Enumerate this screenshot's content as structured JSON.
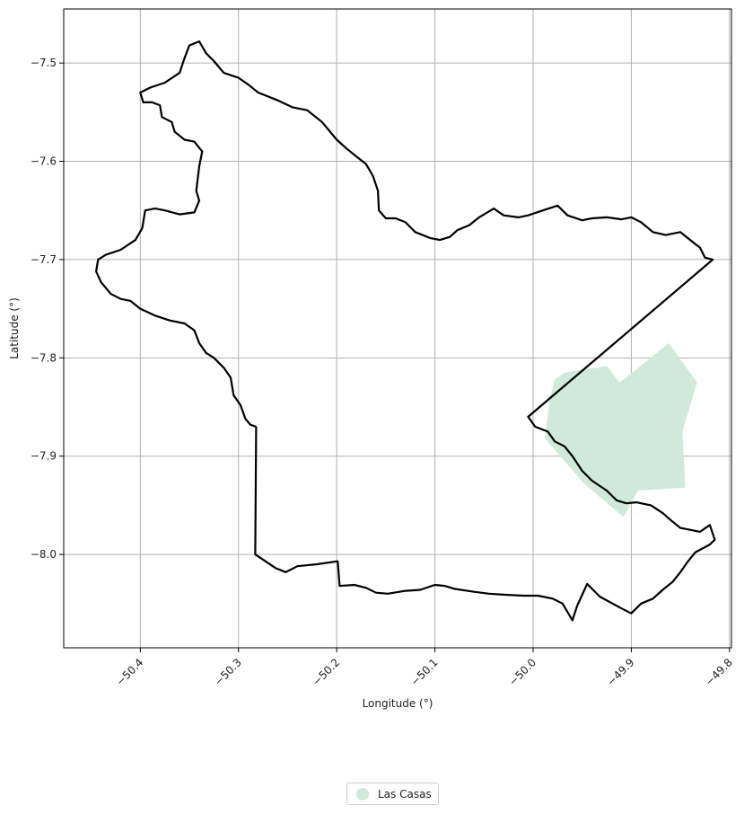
{
  "chart_data": {
    "type": "map",
    "xlabel": "Longitude (°)",
    "ylabel": "Latitude (°)",
    "xlim": [
      -50.478,
      -49.798
    ],
    "ylim": [
      -8.095,
      -7.445
    ],
    "x_ticks": [
      -50.4,
      -50.3,
      -50.2,
      -50.1,
      -50.0,
      -49.9,
      -49.8
    ],
    "x_tick_labels": [
      "−50.4",
      "−50.3",
      "−50.2",
      "−50.1",
      "−50.0",
      "−49.9",
      "−49.8"
    ],
    "y_ticks": [
      -7.5,
      -7.6,
      -7.7,
      -7.8,
      -7.9,
      -8.0
    ],
    "y_tick_labels": [
      "−7.5",
      "−7.6",
      "−7.7",
      "−7.8",
      "−7.9",
      "−8.0"
    ],
    "grid": true,
    "legend_position": "bottom-center",
    "colors": {
      "boundary": "#000000",
      "fill": "#cfeadc",
      "grid": "#b0b0b0"
    },
    "boundary": [
      [
        -50.282,
        -7.87
      ],
      [
        -50.288,
        -7.868
      ],
      [
        -50.293,
        -7.862
      ],
      [
        -50.298,
        -7.848
      ],
      [
        -50.305,
        -7.838
      ],
      [
        -50.308,
        -7.82
      ],
      [
        -50.315,
        -7.81
      ],
      [
        -50.325,
        -7.8
      ],
      [
        -50.333,
        -7.795
      ],
      [
        -50.34,
        -7.785
      ],
      [
        -50.345,
        -7.772
      ],
      [
        -50.355,
        -7.765
      ],
      [
        -50.37,
        -7.762
      ],
      [
        -50.385,
        -7.757
      ],
      [
        -50.4,
        -7.75
      ],
      [
        -50.41,
        -7.742
      ],
      [
        -50.42,
        -7.74
      ],
      [
        -50.43,
        -7.735
      ],
      [
        -50.44,
        -7.723
      ],
      [
        -50.445,
        -7.712
      ],
      [
        -50.443,
        -7.7
      ],
      [
        -50.435,
        -7.695
      ],
      [
        -50.42,
        -7.69
      ],
      [
        -50.405,
        -7.68
      ],
      [
        -50.398,
        -7.668
      ],
      [
        -50.395,
        -7.65
      ],
      [
        -50.385,
        -7.648
      ],
      [
        -50.375,
        -7.65
      ],
      [
        -50.36,
        -7.654
      ],
      [
        -50.345,
        -7.652
      ],
      [
        -50.34,
        -7.64
      ],
      [
        -50.343,
        -7.63
      ],
      [
        -50.34,
        -7.605
      ],
      [
        -50.337,
        -7.59
      ],
      [
        -50.345,
        -7.58
      ],
      [
        -50.355,
        -7.578
      ],
      [
        -50.365,
        -7.57
      ],
      [
        -50.368,
        -7.56
      ],
      [
        -50.378,
        -7.555
      ],
      [
        -50.38,
        -7.543
      ],
      [
        -50.388,
        -7.54
      ],
      [
        -50.397,
        -7.54
      ],
      [
        -50.4,
        -7.53
      ],
      [
        -50.39,
        -7.525
      ],
      [
        -50.375,
        -7.52
      ],
      [
        -50.36,
        -7.51
      ],
      [
        -50.355,
        -7.495
      ],
      [
        -50.35,
        -7.482
      ],
      [
        -50.34,
        -7.478
      ],
      [
        -50.333,
        -7.49
      ],
      [
        -50.325,
        -7.498
      ],
      [
        -50.315,
        -7.51
      ],
      [
        -50.3,
        -7.515
      ],
      [
        -50.29,
        -7.522
      ],
      [
        -50.28,
        -7.53
      ],
      [
        -50.26,
        -7.538
      ],
      [
        -50.245,
        -7.545
      ],
      [
        -50.23,
        -7.548
      ],
      [
        -50.215,
        -7.56
      ],
      [
        -50.2,
        -7.578
      ],
      [
        -50.19,
        -7.587
      ],
      [
        -50.18,
        -7.595
      ],
      [
        -50.17,
        -7.603
      ],
      [
        -50.163,
        -7.615
      ],
      [
        -50.158,
        -7.63
      ],
      [
        -50.157,
        -7.65
      ],
      [
        -50.15,
        -7.658
      ],
      [
        -50.14,
        -7.658
      ],
      [
        -50.13,
        -7.662
      ],
      [
        -50.12,
        -7.672
      ],
      [
        -50.105,
        -7.678
      ],
      [
        -50.095,
        -7.68
      ],
      [
        -50.085,
        -7.677
      ],
      [
        -50.077,
        -7.67
      ],
      [
        -50.065,
        -7.665
      ],
      [
        -50.055,
        -7.657
      ],
      [
        -50.04,
        -7.648
      ],
      [
        -50.03,
        -7.655
      ],
      [
        -50.015,
        -7.657
      ],
      [
        -50.005,
        -7.655
      ],
      [
        -49.99,
        -7.65
      ],
      [
        -49.975,
        -7.645
      ],
      [
        -49.965,
        -7.655
      ],
      [
        -49.95,
        -7.66
      ],
      [
        -49.94,
        -7.658
      ],
      [
        -49.925,
        -7.657
      ],
      [
        -49.91,
        -7.659
      ],
      [
        -49.9,
        -7.657
      ],
      [
        -49.89,
        -7.662
      ],
      [
        -49.878,
        -7.672
      ],
      [
        -49.865,
        -7.675
      ],
      [
        -49.85,
        -7.672
      ],
      [
        -49.84,
        -7.68
      ],
      [
        -49.83,
        -7.688
      ],
      [
        -49.825,
        -7.698
      ],
      [
        -49.817,
        -7.7
      ],
      [
        -50.005,
        -7.86
      ],
      [
        -49.998,
        -7.87
      ],
      [
        -49.985,
        -7.875
      ],
      [
        -49.978,
        -7.885
      ],
      [
        -49.968,
        -7.89
      ],
      [
        -49.96,
        -7.9
      ],
      [
        -49.95,
        -7.915
      ],
      [
        -49.94,
        -7.925
      ],
      [
        -49.925,
        -7.935
      ],
      [
        -49.915,
        -7.945
      ],
      [
        -49.905,
        -7.948
      ],
      [
        -49.895,
        -7.947
      ],
      [
        -49.88,
        -7.95
      ],
      [
        -49.868,
        -7.958
      ],
      [
        -49.86,
        -7.965
      ],
      [
        -49.85,
        -7.973
      ],
      [
        -49.84,
        -7.975
      ],
      [
        -49.83,
        -7.977
      ],
      [
        -49.82,
        -7.97
      ],
      [
        -49.815,
        -7.985
      ],
      [
        -49.82,
        -7.99
      ],
      [
        -49.835,
        -7.998
      ],
      [
        -49.843,
        -8.008
      ],
      [
        -49.85,
        -8.018
      ],
      [
        -49.858,
        -8.028
      ],
      [
        -49.868,
        -8.036
      ],
      [
        -49.878,
        -8.045
      ],
      [
        -49.89,
        -8.05
      ],
      [
        -49.9,
        -8.06
      ],
      [
        -49.91,
        -8.055
      ],
      [
        -49.932,
        -8.043
      ],
      [
        -49.945,
        -8.03
      ],
      [
        -49.955,
        -8.052
      ],
      [
        -49.96,
        -8.067
      ],
      [
        -49.97,
        -8.05
      ],
      [
        -49.98,
        -8.045
      ],
      [
        -49.995,
        -8.042
      ],
      [
        -50.01,
        -8.042
      ],
      [
        -50.03,
        -8.041
      ],
      [
        -50.045,
        -8.04
      ],
      [
        -50.06,
        -8.038
      ],
      [
        -50.08,
        -8.035
      ],
      [
        -50.09,
        -8.032
      ],
      [
        -50.1,
        -8.031
      ],
      [
        -50.115,
        -8.036
      ],
      [
        -50.13,
        -8.037
      ],
      [
        -50.148,
        -8.04
      ],
      [
        -50.16,
        -8.039
      ],
      [
        -50.17,
        -8.034
      ],
      [
        -50.182,
        -8.031
      ],
      [
        -50.197,
        -8.032
      ],
      [
        -50.199,
        -8.007
      ],
      [
        -50.22,
        -8.01
      ],
      [
        -50.24,
        -8.012
      ],
      [
        -50.252,
        -8.018
      ],
      [
        -50.262,
        -8.014
      ],
      [
        -50.283,
        -8.0
      ],
      [
        -50.282,
        -7.87
      ]
    ],
    "areas": [
      {
        "name": "Las Casas",
        "color": "#cfeadc",
        "polygon": [
          [
            -49.862,
            -7.785
          ],
          [
            -49.833,
            -7.825
          ],
          [
            -49.848,
            -7.875
          ],
          [
            -49.845,
            -7.932
          ],
          [
            -49.893,
            -7.935
          ],
          [
            -49.908,
            -7.962
          ],
          [
            -49.948,
            -7.928
          ],
          [
            -49.988,
            -7.882
          ],
          [
            -49.983,
            -7.842
          ],
          [
            -49.978,
            -7.822
          ],
          [
            -49.968,
            -7.815
          ],
          [
            -49.952,
            -7.812
          ],
          [
            -49.935,
            -7.81
          ],
          [
            -49.925,
            -7.808
          ],
          [
            -49.912,
            -7.825
          ],
          [
            -49.895,
            -7.812
          ]
        ]
      }
    ]
  },
  "legend": {
    "items": [
      {
        "label": "Las Casas",
        "color": "#cfeadc"
      }
    ]
  }
}
